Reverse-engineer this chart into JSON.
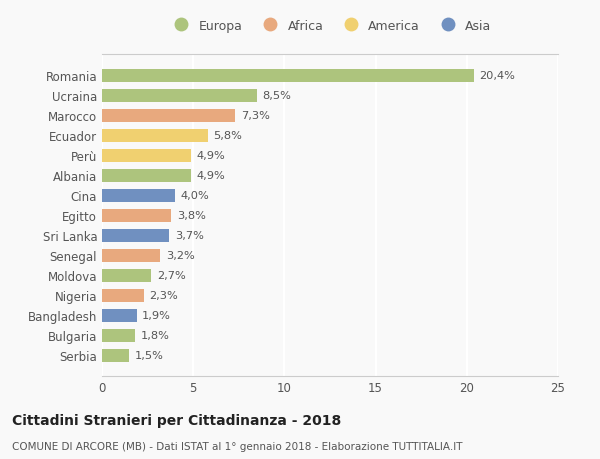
{
  "countries": [
    "Romania",
    "Ucraina",
    "Marocco",
    "Ecuador",
    "Perù",
    "Albania",
    "Cina",
    "Egitto",
    "Sri Lanka",
    "Senegal",
    "Moldova",
    "Nigeria",
    "Bangladesh",
    "Bulgaria",
    "Serbia"
  ],
  "values": [
    20.4,
    8.5,
    7.3,
    5.8,
    4.9,
    4.9,
    4.0,
    3.8,
    3.7,
    3.2,
    2.7,
    2.3,
    1.9,
    1.8,
    1.5
  ],
  "labels": [
    "20,4%",
    "8,5%",
    "7,3%",
    "5,8%",
    "4,9%",
    "4,9%",
    "4,0%",
    "3,8%",
    "3,7%",
    "3,2%",
    "2,7%",
    "2,3%",
    "1,9%",
    "1,8%",
    "1,5%"
  ],
  "continents": [
    "Europa",
    "Europa",
    "Africa",
    "America",
    "America",
    "Europa",
    "Asia",
    "Africa",
    "Asia",
    "Africa",
    "Europa",
    "Africa",
    "Asia",
    "Europa",
    "Europa"
  ],
  "colors": {
    "Europa": "#adc47d",
    "Africa": "#e8a97e",
    "America": "#f0d070",
    "Asia": "#7090c0"
  },
  "legend_order": [
    "Europa",
    "Africa",
    "America",
    "Asia"
  ],
  "xlim": [
    0,
    25
  ],
  "xticks": [
    0,
    5,
    10,
    15,
    20,
    25
  ],
  "title": "Cittadini Stranieri per Cittadinanza - 2018",
  "subtitle": "COMUNE DI ARCORE (MB) - Dati ISTAT al 1° gennaio 2018 - Elaborazione TUTTITALIA.IT",
  "bg_color": "#f9f9f9",
  "bar_height": 0.65
}
